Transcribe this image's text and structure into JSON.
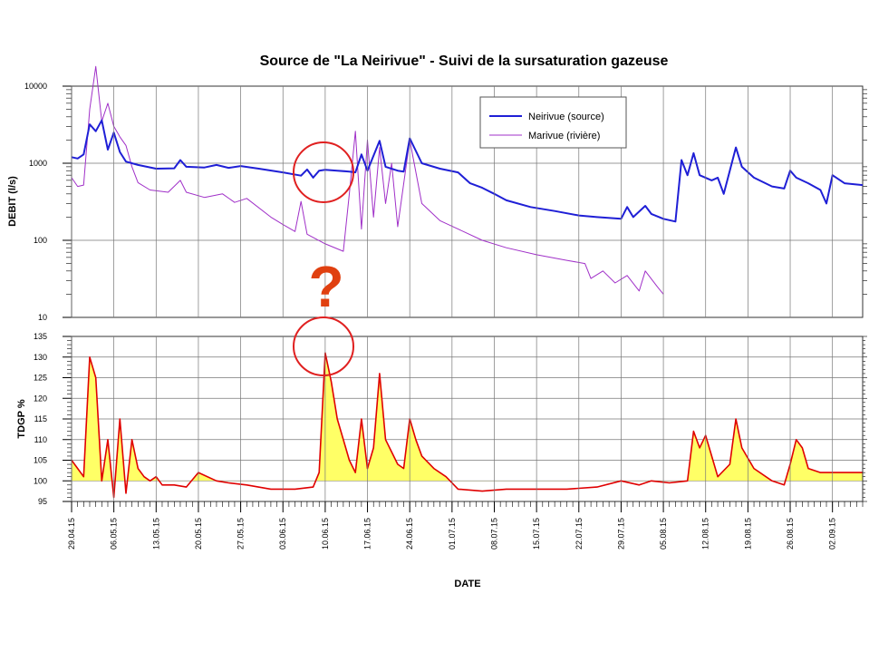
{
  "chart_data": [
    {
      "type": "line",
      "title": "Source de \"La Neirivue\" - Suivi de la sursaturation gazeuse",
      "ylabel": "DEBIT (l/s)",
      "yscale": "log",
      "ylim": [
        10,
        10000
      ],
      "yticks": [
        "10",
        "100",
        "1000",
        "10000"
      ],
      "grid": true,
      "legend_position": "top-right",
      "series": [
        {
          "name": "Neirivue (source)",
          "color": "#1f1fd6",
          "points": [
            [
              "2015-04-29",
              1200
            ],
            [
              "2015-04-30",
              1150
            ],
            [
              "2015-05-01",
              1300
            ],
            [
              "2015-05-02",
              3200
            ],
            [
              "2015-05-03",
              2600
            ],
            [
              "2015-05-04",
              3600
            ],
            [
              "2015-05-05",
              1500
            ],
            [
              "2015-05-06",
              2500
            ],
            [
              "2015-05-07",
              1400
            ],
            [
              "2015-05-08",
              1050
            ],
            [
              "2015-05-10",
              950
            ],
            [
              "2015-05-13",
              850
            ],
            [
              "2015-05-16",
              860
            ],
            [
              "2015-05-17",
              1100
            ],
            [
              "2015-05-18",
              900
            ],
            [
              "2015-05-21",
              880
            ],
            [
              "2015-05-23",
              950
            ],
            [
              "2015-05-25",
              870
            ],
            [
              "2015-05-27",
              920
            ],
            [
              "2015-05-30",
              850
            ],
            [
              "2015-06-03",
              760
            ],
            [
              "2015-06-06",
              690
            ],
            [
              "2015-06-07",
              830
            ],
            [
              "2015-06-08",
              650
            ],
            [
              "2015-06-09",
              800
            ],
            [
              "2015-06-10",
              820
            ],
            [
              "2015-06-12",
              800
            ],
            [
              "2015-06-14",
              780
            ],
            [
              "2015-06-15",
              760
            ],
            [
              "2015-06-16",
              1300
            ],
            [
              "2015-06-17",
              800
            ],
            [
              "2015-06-19",
              1950
            ],
            [
              "2015-06-20",
              900
            ],
            [
              "2015-06-22",
              800
            ],
            [
              "2015-06-23",
              780
            ],
            [
              "2015-06-24",
              2100
            ],
            [
              "2015-06-26",
              1000
            ],
            [
              "2015-06-29",
              850
            ],
            [
              "2015-07-02",
              760
            ],
            [
              "2015-07-04",
              550
            ],
            [
              "2015-07-06",
              480
            ],
            [
              "2015-07-08",
              400
            ],
            [
              "2015-07-10",
              330
            ],
            [
              "2015-07-14",
              270
            ],
            [
              "2015-07-18",
              240
            ],
            [
              "2015-07-22",
              210
            ],
            [
              "2015-07-25",
              200
            ],
            [
              "2015-07-29",
              190
            ],
            [
              "2015-07-30",
              270
            ],
            [
              "2015-07-31",
              200
            ],
            [
              "2015-08-02",
              280
            ],
            [
              "2015-08-03",
              220
            ],
            [
              "2015-08-05",
              190
            ],
            [
              "2015-08-07",
              175
            ],
            [
              "2015-08-08",
              1100
            ],
            [
              "2015-08-09",
              700
            ],
            [
              "2015-08-10",
              1350
            ],
            [
              "2015-08-11",
              700
            ],
            [
              "2015-08-13",
              600
            ],
            [
              "2015-08-14",
              650
            ],
            [
              "2015-08-15",
              400
            ],
            [
              "2015-08-16",
              800
            ],
            [
              "2015-08-17",
              1600
            ],
            [
              "2015-08-18",
              900
            ],
            [
              "2015-08-20",
              650
            ],
            [
              "2015-08-23",
              500
            ],
            [
              "2015-08-25",
              470
            ],
            [
              "2015-08-26",
              800
            ],
            [
              "2015-08-27",
              650
            ],
            [
              "2015-08-29",
              550
            ],
            [
              "2015-08-31",
              450
            ],
            [
              "2015-09-01",
              300
            ],
            [
              "2015-09-02",
              700
            ],
            [
              "2015-09-04",
              550
            ],
            [
              "2015-09-07",
              520
            ]
          ]
        },
        {
          "name": "Marivue (rivière)",
          "color": "#a030c8",
          "points": [
            [
              "2015-04-29",
              650
            ],
            [
              "2015-04-30",
              500
            ],
            [
              "2015-05-01",
              520
            ],
            [
              "2015-05-02",
              5000
            ],
            [
              "2015-05-03",
              18000
            ],
            [
              "2015-05-04",
              3500
            ],
            [
              "2015-05-05",
              6000
            ],
            [
              "2015-05-06",
              3000
            ],
            [
              "2015-05-07",
              2200
            ],
            [
              "2015-05-08",
              1700
            ],
            [
              "2015-05-09",
              900
            ],
            [
              "2015-05-10",
              560
            ],
            [
              "2015-05-12",
              450
            ],
            [
              "2015-05-15",
              420
            ],
            [
              "2015-05-17",
              600
            ],
            [
              "2015-05-18",
              420
            ],
            [
              "2015-05-21",
              360
            ],
            [
              "2015-05-24",
              400
            ],
            [
              "2015-05-26",
              310
            ],
            [
              "2015-05-28",
              350
            ],
            [
              "2015-06-01",
              200
            ],
            [
              "2015-06-03",
              160
            ],
            [
              "2015-06-05",
              130
            ],
            [
              "2015-06-06",
              320
            ],
            [
              "2015-06-07",
              120
            ],
            [
              "2015-06-10",
              90
            ],
            [
              "2015-06-13",
              72
            ],
            [
              "2015-06-14",
              400
            ],
            [
              "2015-06-15",
              2600
            ],
            [
              "2015-06-16",
              140
            ],
            [
              "2015-06-17",
              2000
            ],
            [
              "2015-06-18",
              200
            ],
            [
              "2015-06-19",
              1600
            ],
            [
              "2015-06-20",
              300
            ],
            [
              "2015-06-21",
              1000
            ],
            [
              "2015-06-22",
              150
            ],
            [
              "2015-06-24",
              2000
            ],
            [
              "2015-06-26",
              300
            ],
            [
              "2015-06-29",
              180
            ],
            [
              "2015-07-02",
              140
            ],
            [
              "2015-07-06",
              100
            ],
            [
              "2015-07-10",
              80
            ],
            [
              "2015-07-15",
              65
            ],
            [
              "2015-07-20",
              55
            ],
            [
              "2015-07-23",
              50
            ],
            [
              "2015-07-24",
              32
            ],
            [
              "2015-07-26",
              40
            ],
            [
              "2015-07-28",
              28
            ],
            [
              "2015-07-30",
              35
            ],
            [
              "2015-08-01",
              22
            ],
            [
              "2015-08-02",
              40
            ],
            [
              "2015-08-04",
              25
            ],
            [
              "2015-08-05",
              20
            ]
          ]
        }
      ]
    },
    {
      "type": "area",
      "ylabel": "TDGP %",
      "xlabel": "DATE",
      "ylim": [
        95,
        135
      ],
      "yticks": [
        "95",
        "100",
        "105",
        "110",
        "115",
        "120",
        "125",
        "130",
        "135"
      ],
      "baseline": 100,
      "fill_color": "#ffff66",
      "line_color": "#e00000",
      "grid": true,
      "points": [
        [
          "2015-04-29",
          105
        ],
        [
          "2015-04-30",
          103
        ],
        [
          "2015-05-01",
          101
        ],
        [
          "2015-05-02",
          130
        ],
        [
          "2015-05-03",
          125
        ],
        [
          "2015-05-04",
          100
        ],
        [
          "2015-05-05",
          110
        ],
        [
          "2015-05-06",
          96
        ],
        [
          "2015-05-07",
          115
        ],
        [
          "2015-05-08",
          97
        ],
        [
          "2015-05-09",
          110
        ],
        [
          "2015-05-10",
          103
        ],
        [
          "2015-05-11",
          101
        ],
        [
          "2015-05-12",
          100
        ],
        [
          "2015-05-13",
          101
        ],
        [
          "2015-05-14",
          99
        ],
        [
          "2015-05-16",
          99
        ],
        [
          "2015-05-18",
          98.5
        ],
        [
          "2015-05-20",
          102
        ],
        [
          "2015-05-23",
          100
        ],
        [
          "2015-05-25",
          99.5
        ],
        [
          "2015-05-28",
          99
        ],
        [
          "2015-06-01",
          98
        ],
        [
          "2015-06-05",
          98
        ],
        [
          "2015-06-08",
          98.5
        ],
        [
          "2015-06-09",
          102
        ],
        [
          "2015-06-10",
          131
        ],
        [
          "2015-06-11",
          124
        ],
        [
          "2015-06-12",
          115
        ],
        [
          "2015-06-13",
          110
        ],
        [
          "2015-06-14",
          105
        ],
        [
          "2015-06-15",
          102
        ],
        [
          "2015-06-16",
          115
        ],
        [
          "2015-06-17",
          103
        ],
        [
          "2015-06-18",
          108
        ],
        [
          "2015-06-19",
          126
        ],
        [
          "2015-06-20",
          110
        ],
        [
          "2015-06-21",
          107
        ],
        [
          "2015-06-22",
          104
        ],
        [
          "2015-06-23",
          103
        ],
        [
          "2015-06-24",
          115
        ],
        [
          "2015-06-25",
          110
        ],
        [
          "2015-06-26",
          106
        ],
        [
          "2015-06-28",
          103
        ],
        [
          "2015-06-30",
          101
        ],
        [
          "2015-07-02",
          98
        ],
        [
          "2015-07-06",
          97.5
        ],
        [
          "2015-07-10",
          98
        ],
        [
          "2015-07-15",
          98
        ],
        [
          "2015-07-20",
          98
        ],
        [
          "2015-07-25",
          98.5
        ],
        [
          "2015-07-29",
          100
        ],
        [
          "2015-08-01",
          99
        ],
        [
          "2015-08-03",
          100
        ],
        [
          "2015-08-06",
          99.5
        ],
        [
          "2015-08-09",
          100
        ],
        [
          "2015-08-10",
          112
        ],
        [
          "2015-08-11",
          108
        ],
        [
          "2015-08-12",
          111
        ],
        [
          "2015-08-13",
          106
        ],
        [
          "2015-08-14",
          101
        ],
        [
          "2015-08-16",
          104
        ],
        [
          "2015-08-17",
          115
        ],
        [
          "2015-08-18",
          108
        ],
        [
          "2015-08-20",
          103
        ],
        [
          "2015-08-23",
          100
        ],
        [
          "2015-08-25",
          99
        ],
        [
          "2015-08-26",
          104
        ],
        [
          "2015-08-27",
          110
        ],
        [
          "2015-08-28",
          108
        ],
        [
          "2015-08-29",
          103
        ],
        [
          "2015-08-31",
          102
        ],
        [
          "2015-09-03",
          102
        ],
        [
          "2015-09-07",
          102
        ]
      ]
    }
  ],
  "x_axis": {
    "start": "2015-04-29",
    "end": "2015-09-07",
    "ticks": [
      [
        "2015-04-29",
        "29.04.15"
      ],
      [
        "2015-05-06",
        "06.05.15"
      ],
      [
        "2015-05-13",
        "13.05.15"
      ],
      [
        "2015-05-20",
        "20.05.15"
      ],
      [
        "2015-05-27",
        "27.05.15"
      ],
      [
        "2015-06-03",
        "03.06.15"
      ],
      [
        "2015-06-10",
        "10.06.15"
      ],
      [
        "2015-06-17",
        "17.06.15"
      ],
      [
        "2015-06-24",
        "24.06.15"
      ],
      [
        "2015-07-01",
        "01.07.15"
      ],
      [
        "2015-07-08",
        "08.07.15"
      ],
      [
        "2015-07-15",
        "15.07.15"
      ],
      [
        "2015-07-22",
        "22.07.15"
      ],
      [
        "2015-07-29",
        "29.07.15"
      ],
      [
        "2015-08-05",
        "05.08.15"
      ],
      [
        "2015-08-12",
        "12.08.15"
      ],
      [
        "2015-08-19",
        "19.08.15"
      ],
      [
        "2015-08-26",
        "26.08.15"
      ],
      [
        "2015-09-02",
        "02.09.15"
      ]
    ]
  },
  "annotations": {
    "question_mark": "?",
    "circle_color": "#e02020"
  }
}
